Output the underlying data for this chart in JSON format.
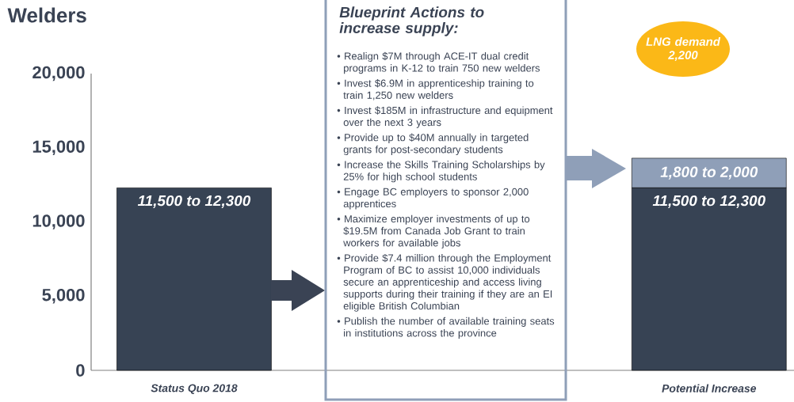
{
  "chart_data": {
    "type": "bar",
    "title": "Welders",
    "categories": [
      "Status Quo 2018",
      "Potential Increase"
    ],
    "stacked": true,
    "series": [
      {
        "color": "#374354",
        "values": [
          12300,
          12300
        ],
        "value_labels": [
          "11,500 to 12,300",
          "11,500 to 12,300"
        ]
      },
      {
        "color": "#8f9fb8",
        "values": [
          null,
          2000
        ],
        "value_labels": [
          null,
          "1,800 to 2,000"
        ]
      }
    ],
    "ylim": [
      0,
      20000
    ],
    "yticks": [
      {
        "value": 0,
        "label": "0"
      },
      {
        "value": 5000,
        "label": "5,000"
      },
      {
        "value": 10000,
        "label": "10,000"
      },
      {
        "value": 15000,
        "label": "15,000"
      },
      {
        "value": 20000,
        "label": "20,000"
      }
    ],
    "annotations": [
      "Blueprint Actions to increase supply:",
      "• Realign $7M through ACE-IT dual credit programs in K-12 to train 750 new welders",
      "• Invest $6.9M in apprenticeship training to train 1,250 new welders",
      "• Invest $185M in infrastructure and equipment over the next 3 years",
      "• Provide up to $40M annually in targeted grants for post-secondary students",
      "• Increase the Skills Training Scholarships by 25% for high school students",
      "• Engage BC employers to sponsor 2,000 apprentices",
      "• Maximize employer investments of up to $19.5M from Canada Job Grant to train workers for available jobs",
      "• Provide $7.4 million through the Employment Program of BC to assist 10,000 individuals secure an apprenticeship and access living supports during their training if they are an EI eligible British Columbian",
      "• Publish the number of available training seats in institutions across the province",
      "LNG demand 2,200"
    ]
  }
}
